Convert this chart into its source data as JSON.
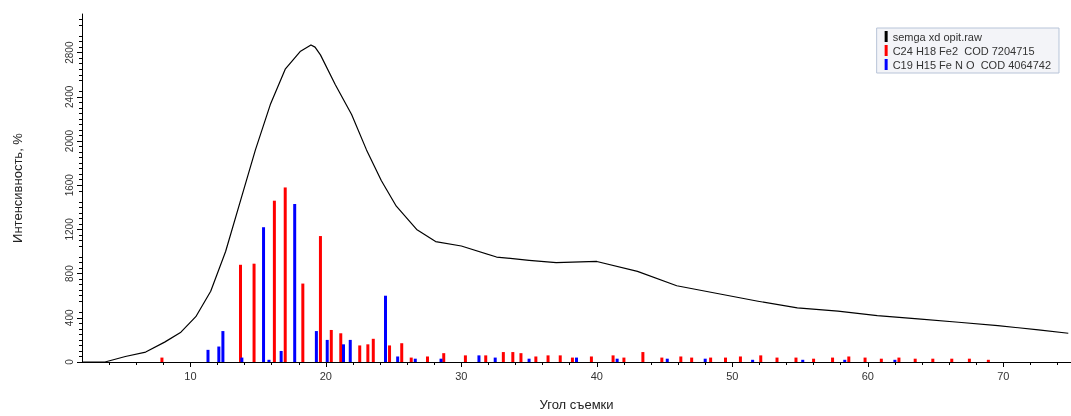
{
  "chart_data": {
    "type": "line",
    "xlabel": "Угол съемки",
    "ylabel": "Интенсивность, %",
    "xlim": [
      2,
      75
    ],
    "xticks": [
      10,
      20,
      30,
      40,
      50,
      60,
      70
    ],
    "ylim": [
      0,
      3150
    ],
    "yticks": [
      0,
      400,
      800,
      1200,
      1600,
      2000,
      2400,
      2800
    ],
    "grid": false,
    "legend": "top right",
    "marker": "none",
    "line_style": "solid",
    "series": [
      {
        "name": "semga xd opit.raw",
        "color": "#000000",
        "x": [
          2,
          3.7,
          5.2,
          6.7,
          8.1,
          9.3,
          10.4,
          11.5,
          12.6,
          13.7,
          14.8,
          15.9,
          17.0,
          18.1,
          18.9,
          19.2,
          19.6,
          20.7,
          21.9,
          23.0,
          24.1,
          25.2,
          26.7,
          28.1,
          30.0,
          32.6,
          35,
          37.0,
          40.0,
          43.0,
          45.9,
          48.9,
          51.9,
          54.8,
          57.8,
          60.7,
          63.7,
          66.7,
          69.6,
          72.6,
          74.8
        ],
        "values": [
          0,
          0,
          50,
          90,
          180,
          270,
          410,
          640,
          1000,
          1460,
          1920,
          2330,
          2650,
          2810,
          2870,
          2850,
          2780,
          2510,
          2240,
          1920,
          1640,
          1410,
          1200,
          1090,
          1050,
          950,
          920,
          900,
          910,
          820,
          690,
          620,
          550,
          490,
          460,
          420,
          390,
          360,
          330,
          290,
          260
        ]
      },
      {
        "name": "C24 H18 Fe2  COD 7204715",
        "type": "bar",
        "color": "#ff0000",
        "x": [
          7.9,
          13.7,
          14.7,
          16.2,
          17.0,
          18.3,
          19.6,
          20.4,
          21.1,
          22.5,
          23.1,
          23.5,
          24.7,
          25.6,
          26.3,
          27.5,
          28.7,
          30.3,
          31.8,
          33.1,
          33.8,
          34.4,
          35.5,
          36.4,
          37.3,
          38.2,
          39.6,
          41.2,
          42.0,
          43.4,
          44.8,
          46.2,
          47.0,
          48.4,
          49.5,
          50.6,
          52.1,
          53.3,
          54.7,
          56.0,
          57.4,
          58.6,
          59.8,
          61.0,
          62.3,
          63.5,
          64.8,
          66.2,
          67.5,
          68.9
        ],
        "values": [
          40,
          880,
          890,
          1460,
          1580,
          710,
          1140,
          290,
          260,
          150,
          160,
          210,
          150,
          170,
          40,
          50,
          80,
          60,
          60,
          90,
          90,
          80,
          50,
          60,
          60,
          40,
          50,
          60,
          40,
          90,
          40,
          50,
          40,
          40,
          40,
          50,
          60,
          40,
          40,
          30,
          40,
          50,
          40,
          30,
          40,
          30,
          30,
          30,
          30,
          20
        ]
      },
      {
        "name": "C19 H15 Fe N O  COD 4064742",
        "type": "bar",
        "color": "#0000ff",
        "x": [
          11.3,
          12.1,
          12.4,
          13.8,
          15.4,
          15.8,
          16.7,
          17.7,
          19.3,
          20.1,
          21.3,
          21.8,
          24.4,
          25.3,
          26.6,
          28.5,
          31.3,
          32.5,
          35.0,
          38.5,
          41.5,
          45.2,
          48.0,
          51.5,
          55.2,
          58.3,
          62.0
        ],
        "values": [
          110,
          140,
          280,
          40,
          1220,
          20,
          100,
          1430,
          280,
          200,
          160,
          200,
          600,
          50,
          30,
          30,
          60,
          40,
          30,
          40,
          30,
          30,
          30,
          20,
          20,
          20,
          20
        ]
      }
    ]
  }
}
